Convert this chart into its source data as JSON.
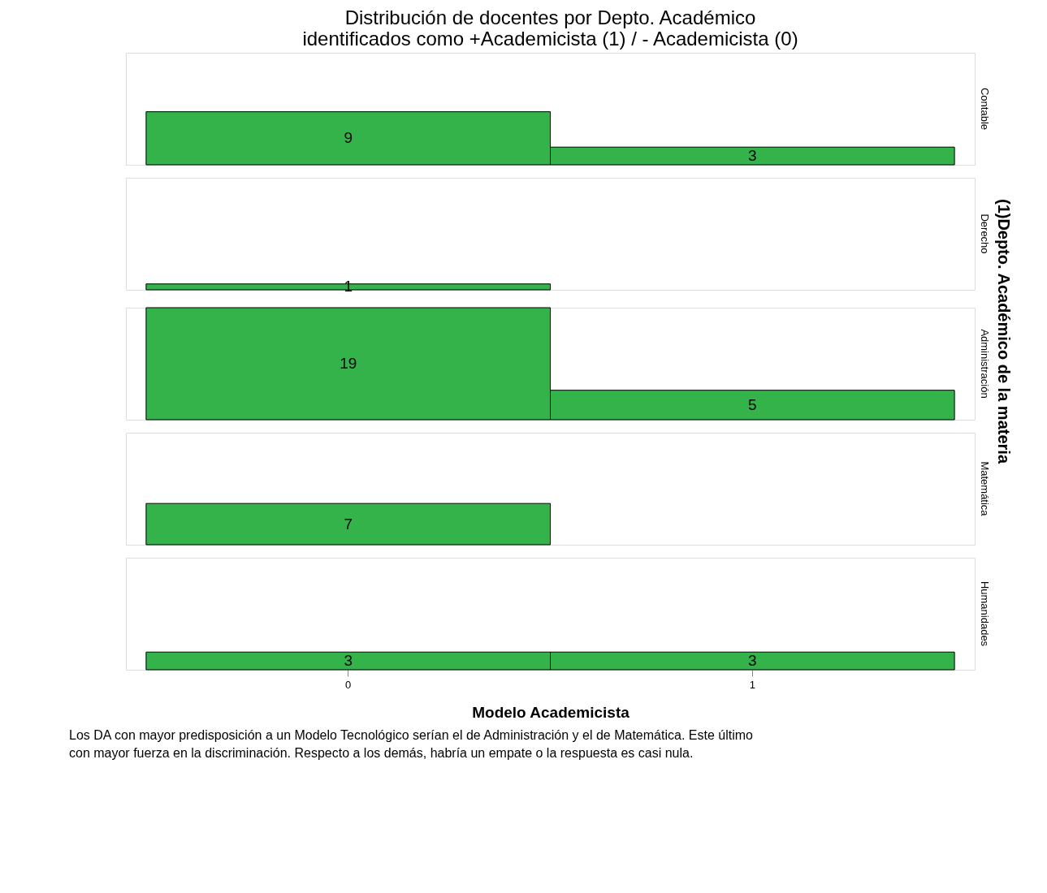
{
  "chart_data": [
    {
      "type": "bar",
      "title": [
        "Distribución de docentes por Depto. Académico",
        "identificados como +Academicista (1) / - Academicista (0)"
      ],
      "y2label": "Contable",
      "categories": [
        "0",
        "1"
      ],
      "values": [
        9,
        3
      ],
      "color": "#33b34a",
      "data_labels": true,
      "ylim": [
        0,
        19
      ],
      "tick_labels": false
    },
    {
      "type": "bar",
      "y2label": "Derecho",
      "categories": [
        "0",
        "1"
      ],
      "values": [
        1,
        null
      ],
      "color": "#33b34a",
      "data_labels": true,
      "ylim": [
        0,
        19
      ],
      "tick_labels": false
    },
    {
      "type": "bar",
      "y2label": "Administración",
      "annotations": [
        "(1)Depto. Académico de la materia"
      ],
      "categories": [
        "0",
        "1"
      ],
      "values": [
        19,
        5
      ],
      "color": "#33b34a",
      "data_labels": true,
      "ylim": [
        0,
        19
      ],
      "tick_labels": false
    },
    {
      "type": "bar",
      "y2label": "Matemática",
      "categories": [
        "0",
        "1"
      ],
      "values": [
        7,
        null
      ],
      "color": "#33b34a",
      "data_labels": true,
      "ylim": [
        0,
        19
      ],
      "tick_labels": false
    },
    {
      "type": "bar",
      "y2label": "Humanidades",
      "xlabel": "Modelo Academicista",
      "annotations": [
        "Los DA con mayor predisposición a un Modelo Tecnológico serían el de Administración y el de Matemática. Este último con mayor fuerza en la discriminación. Respecto a los demás, habría un empate o la respuesta es casi nula."
      ],
      "categories": [
        "0",
        "1"
      ],
      "values": [
        3,
        3
      ],
      "color": "#33b34a",
      "data_labels": true,
      "ylim": [
        0,
        19
      ],
      "tick_labels": "x"
    }
  ]
}
